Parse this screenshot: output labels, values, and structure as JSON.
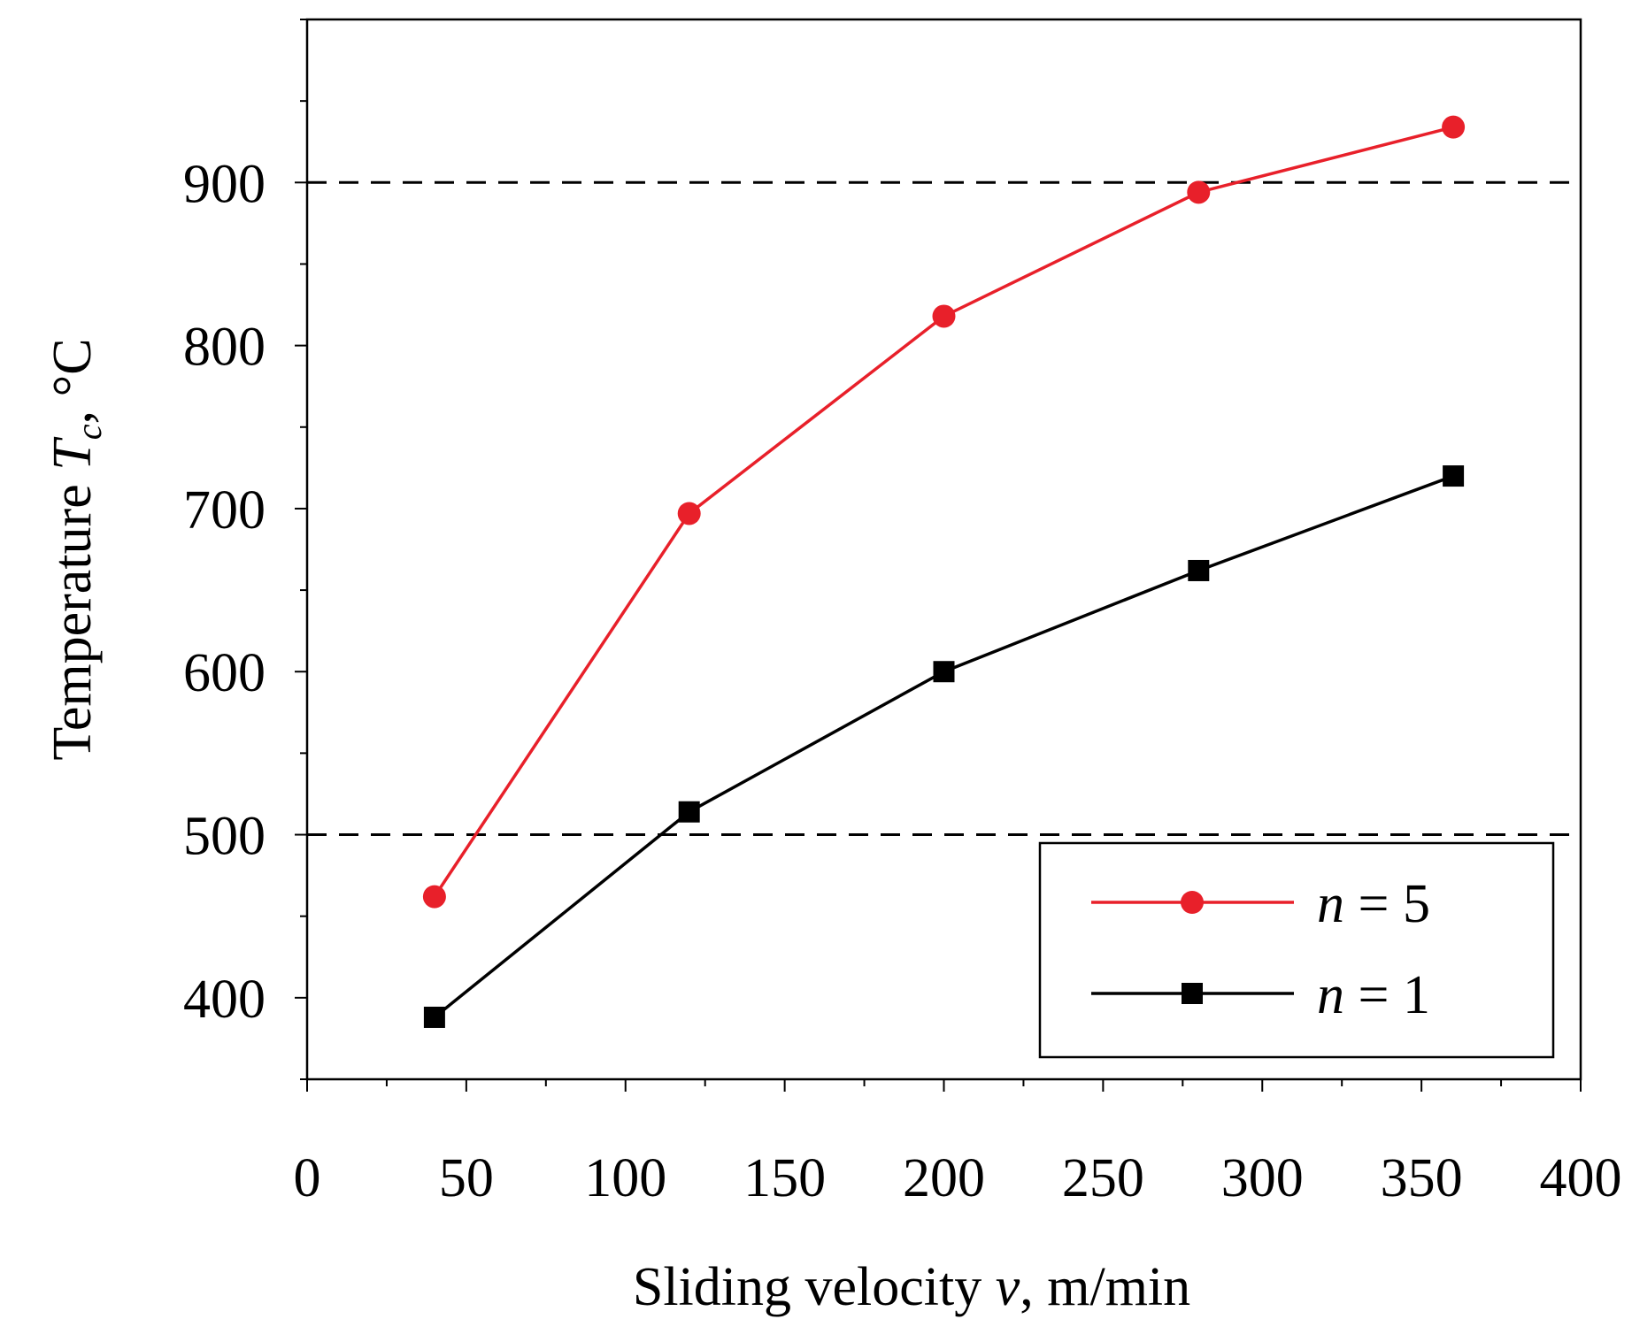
{
  "chart_data": {
    "type": "line",
    "title": "",
    "xlabel": {
      "prefix": "Sliding velocity ",
      "variable": "v",
      "suffix": ", m/min"
    },
    "ylabel": {
      "prefix": "Temperature ",
      "variable": "T",
      "subscript": "c",
      "suffix": ", °C"
    },
    "xlim": [
      0,
      400
    ],
    "ylim": [
      350,
      1000
    ],
    "xticks": [
      0,
      50,
      100,
      150,
      200,
      250,
      300,
      350,
      400
    ],
    "yticks": [
      400,
      500,
      600,
      700,
      800,
      900
    ],
    "x_minor_step": 25,
    "y_minor_step": 50,
    "reference_lines": [
      {
        "axis": "y",
        "value": 900,
        "style": "dashed"
      },
      {
        "axis": "y",
        "value": 500,
        "style": "dashed"
      }
    ],
    "legend_position": "bottom-right",
    "series": [
      {
        "name": "n = 5",
        "var": "n",
        "eq": " = 5",
        "color": "#e8202a",
        "marker": "circle",
        "x": [
          40,
          120,
          200,
          280,
          360
        ],
        "y": [
          462,
          697,
          818,
          894,
          934
        ]
      },
      {
        "name": "n = 1",
        "var": "n",
        "eq": " = 1",
        "color": "#000000",
        "marker": "square",
        "x": [
          40,
          120,
          200,
          280,
          360
        ],
        "y": [
          388,
          514,
          600,
          662,
          720
        ]
      }
    ]
  }
}
